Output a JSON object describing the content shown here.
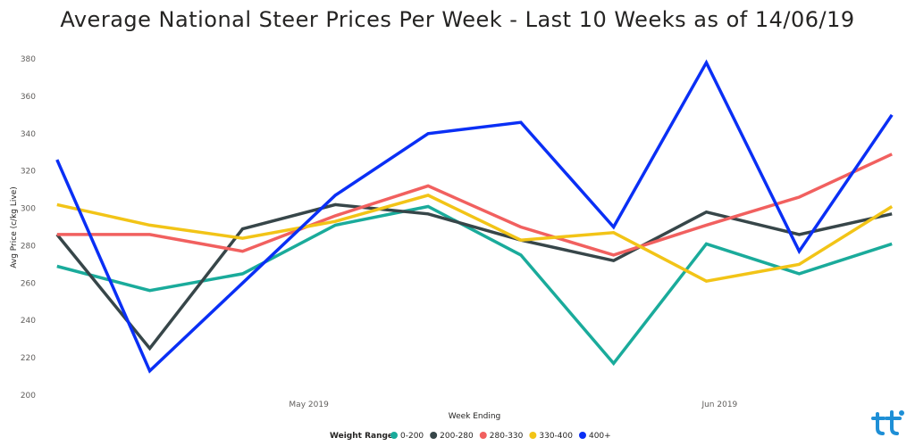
{
  "chart_data": {
    "type": "line",
    "title": "Average National Steer Prices Per Week - Last 10 Weeks as of 14/06/19",
    "xlabel": "Week Ending",
    "ylabel": "Avg Price (c/kg Live)",
    "ylim": [
      200,
      380
    ],
    "yticks": [
      200,
      220,
      240,
      260,
      280,
      300,
      320,
      340,
      360,
      380
    ],
    "x": [
      "2019-04-12",
      "2019-04-19",
      "2019-04-26",
      "2019-05-03",
      "2019-05-10",
      "2019-05-17",
      "2019-05-24",
      "2019-05-31",
      "2019-06-07",
      "2019-06-14"
    ],
    "xlim": [
      "2019-04-11",
      "2019-06-15"
    ],
    "xticks": [
      {
        "date": "2019-05-01",
        "label": "May 2019"
      },
      {
        "date": "2019-06-01",
        "label": "Jun 2019"
      }
    ],
    "grid": false,
    "legend": {
      "title": "Weight Range",
      "position": "bottom"
    },
    "series": [
      {
        "name": "0-200",
        "color": "#1aab9b",
        "values": [
          269,
          256,
          265,
          291,
          301,
          275,
          217,
          281,
          265,
          281
        ]
      },
      {
        "name": "200-280",
        "color": "#374649",
        "values": [
          286,
          225,
          289,
          302,
          297,
          283,
          272,
          298,
          286,
          297
        ]
      },
      {
        "name": "280-330",
        "color": "#f1605f",
        "values": [
          286,
          286,
          277,
          296,
          312,
          290,
          275,
          291,
          306,
          329
        ]
      },
      {
        "name": "330-400",
        "color": "#f2c417",
        "values": [
          302,
          291,
          284,
          293,
          307,
          283,
          287,
          261,
          270,
          301
        ]
      },
      {
        "name": "400+",
        "color": "#0a2ff5",
        "values": [
          326,
          213,
          260,
          307,
          340,
          346,
          290,
          378,
          277,
          350
        ]
      }
    ]
  },
  "logo": {
    "name": "brand-logo-icon",
    "color": "#1e8fd6"
  }
}
